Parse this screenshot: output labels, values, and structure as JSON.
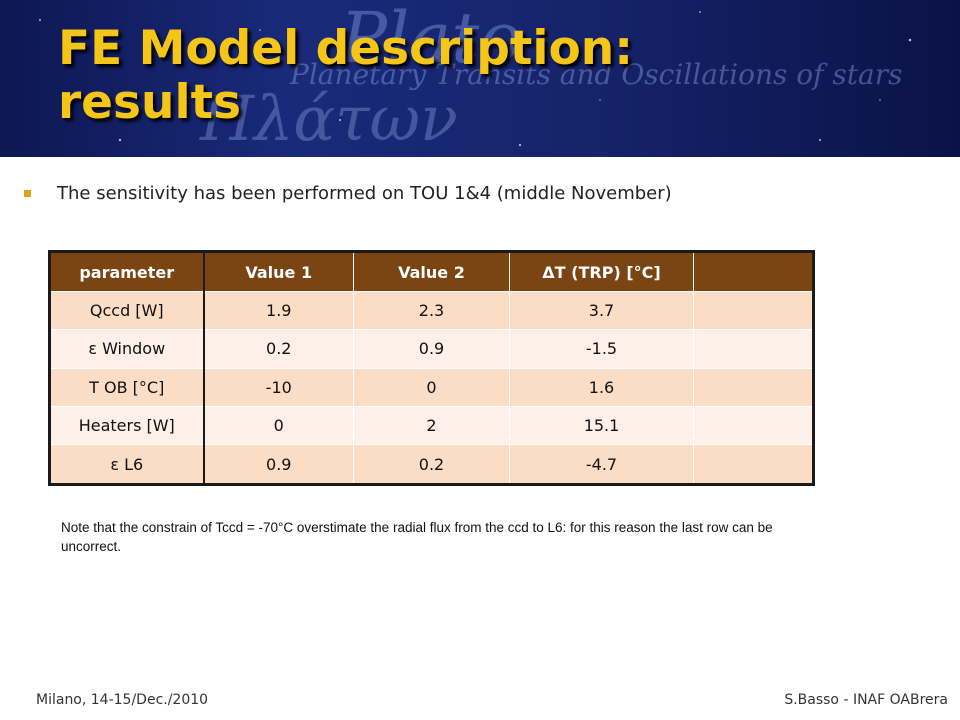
{
  "slide": {
    "title_line1": "FE Model description:",
    "title_line2": "results",
    "bullet": "The sensitivity has been performed on TOU 1&4 (middle November)",
    "note": "Note that the constrain of Tccd = -70°C overstimate the radial flux from the ccd to L6: for this reason the last row can be uncorrect.",
    "footer_left": "Milano, 14-15/Dec./2010",
    "footer_right": "S.Basso - INAF OABrera"
  },
  "banner": {
    "logo_text": "Plato",
    "subtitle_text": "Planetary Transits and Oscillations of stars",
    "greek_text": "Πλάτων"
  },
  "table": {
    "headers": [
      "parameter",
      "Value 1",
      "Value 2",
      "ΔT (TRP) [°C]",
      ""
    ],
    "rows": [
      [
        "Qccd [W]",
        "1.9",
        "2.3",
        "3.7",
        ""
      ],
      [
        "ε Window",
        "0.2",
        "0.9",
        "-1.5",
        ""
      ],
      [
        "T OB [°C]",
        "-10",
        "0",
        "1.6",
        ""
      ],
      [
        "Heaters [W]",
        "0",
        "2",
        "15.1",
        ""
      ],
      [
        "ε L6",
        "0.9",
        "0.2",
        "-4.7",
        ""
      ]
    ]
  },
  "colors": {
    "title": "#f5c518",
    "header_bg": "#7a4512",
    "row_odd": "#fbdcc4",
    "row_even": "#fdf0e8",
    "bullet": "#e0a020"
  }
}
